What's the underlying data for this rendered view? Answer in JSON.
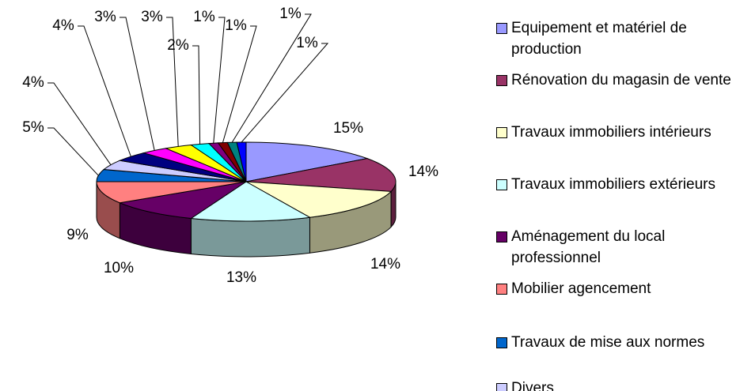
{
  "chart_data": {
    "type": "pie3d",
    "categories": [
      "Equipement et matériel de production",
      "Rénovation du magasin de vente",
      "Travaux immobiliers intérieurs",
      "Travaux immobiliers extérieurs",
      "Aménagement du local professionnel",
      "Mobilier agencement",
      "Travaux de mise aux normes",
      "Divers",
      null,
      null,
      null,
      null,
      null,
      null,
      null,
      null
    ],
    "values": [
      15,
      14,
      14,
      13,
      10,
      9,
      5,
      4,
      4,
      3,
      3,
      2,
      1,
      1,
      1,
      1
    ],
    "value_labels": [
      "15%",
      "14%",
      "14%",
      "13%",
      "10%",
      "9%",
      "5%",
      "4%",
      "4%",
      "3%",
      "3%",
      "2%",
      "1%",
      "1%",
      "1%",
      "1%"
    ],
    "colors": [
      "#9999ff",
      "#993366",
      "#ffffcc",
      "#ccffff",
      "#660066",
      "#ff8080",
      "#0066cc",
      "#ccccff",
      "#000080",
      "#ff00ff",
      "#ffff00",
      "#00ffff",
      "#800080",
      "#800000",
      "#008080",
      "#0000ff"
    ],
    "legend": "right"
  }
}
